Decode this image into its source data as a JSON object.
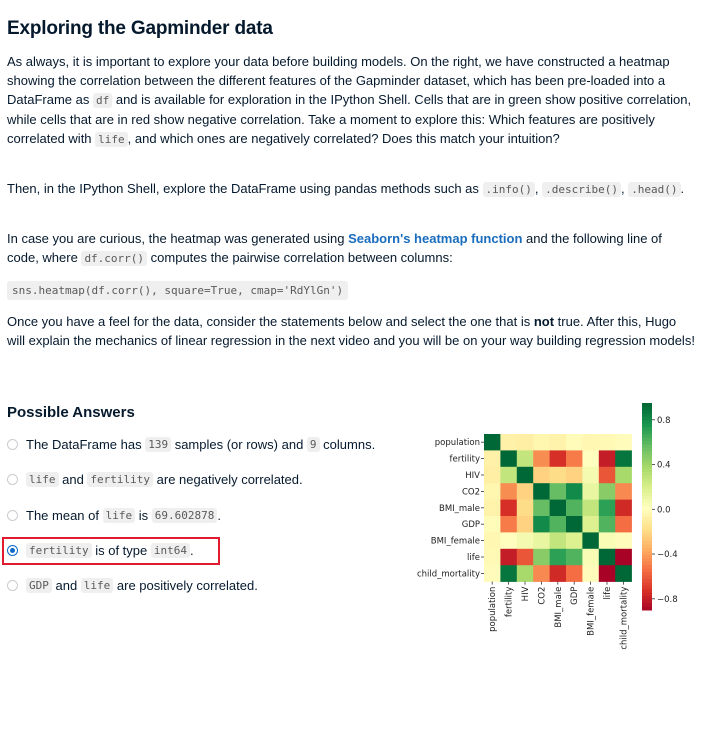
{
  "page": {
    "title": "Exploring the Gapminder data",
    "intro": {
      "t1": "As always, it is important to explore your data before building models. On the right, we have constructed a heatmap showing the correlation between the different features of the Gapminder dataset, which has been pre-loaded into a DataFrame as ",
      "c1": "df",
      "t2": " and is available for exploration in the IPython Shell. Cells that are in green show positive correlation, while cells that are in red show negative correlation. Take a moment to explore this: Which features are positively correlated with ",
      "c2": "life",
      "t3": ", and which ones are negatively correlated? Does this match your intuition?"
    },
    "explore": {
      "t1": "Then, in the IPython Shell, explore the DataFrame using pandas methods such as ",
      "c1": ".info()",
      "t2": ", ",
      "c2": ".describe()",
      "t3": ", ",
      "c3": ".head()",
      "t4": "."
    },
    "curious": {
      "t1": "In case you are curious, the heatmap was generated using ",
      "link": "Seaborn's heatmap function",
      "t2": " and the following line of code, where ",
      "c1": "df.corr()",
      "t3": " computes the pairwise correlation between columns:"
    },
    "code_line": "sns.heatmap(df.corr(), square=True, cmap='RdYlGn')",
    "outro": {
      "t1": "Once you have a feel for the data, consider the statements below and select the one that is ",
      "b1": "not",
      "t2": " true. After this, Hugo will explain the mechanics of linear regression in the next video and you will be on your way building regression models!"
    },
    "answers_title": "Possible Answers",
    "answers": [
      {
        "t1": "The DataFrame has ",
        "c1": "139",
        "t2": " samples (or rows) and ",
        "c2": "9",
        "t3": " columns."
      },
      {
        "c1": "life",
        "t1": " and ",
        "c2": "fertility",
        "t2": " are negatively correlated."
      },
      {
        "t1": "The mean of ",
        "c1": "life",
        "t2": " is ",
        "c2": "69.602878",
        "t3": "."
      },
      {
        "c1": "fertility",
        "t1": " is of type ",
        "c2": "int64",
        "t2": "."
      },
      {
        "c1": "GDP",
        "t1": " and ",
        "c2": "life",
        "t2": " are positively correlated."
      }
    ],
    "selected_answer": 3
  },
  "chart_data": {
    "type": "heatmap",
    "labels": [
      "population",
      "fertility",
      "HIV",
      "CO2",
      "BMI_male",
      "GDP",
      "BMI_female",
      "life",
      "child_mortality"
    ],
    "xtick_labels": [
      "population",
      "fertility",
      "HIV",
      "CO2",
      "BMI_male",
      "GDP",
      "BMI_female",
      "life",
      "child_mortality"
    ],
    "ytick_labels": [
      "population",
      "fertility",
      "HIV",
      "CO2",
      "BMI_male",
      "GDP",
      "BMI_female",
      "life",
      "child_mortality"
    ],
    "cmap": "RdYlGn",
    "vmin": -0.9,
    "vmax": 0.95,
    "colorbar_ticks": [
      0.8,
      0.4,
      0.0,
      -0.4,
      -0.8
    ],
    "colorbar_tick_labels": [
      "0.8",
      "0.4",
      "0.0",
      "−0.4",
      "−0.8"
    ],
    "values": [
      [
        1.0,
        -0.06,
        -0.07,
        -0.03,
        -0.05,
        0.0,
        -0.02,
        -0.01,
        0.01
      ],
      [
        -0.06,
        1.0,
        0.29,
        -0.44,
        -0.72,
        -0.49,
        0.02,
        -0.79,
        0.9
      ],
      [
        -0.07,
        0.29,
        1.0,
        -0.21,
        -0.17,
        -0.21,
        0.08,
        -0.6,
        0.39
      ],
      [
        -0.03,
        -0.44,
        -0.21,
        1.0,
        0.58,
        0.82,
        0.13,
        0.48,
        -0.45
      ],
      [
        -0.05,
        -0.72,
        -0.17,
        0.58,
        1.0,
        0.63,
        0.29,
        0.72,
        -0.74
      ],
      [
        0.0,
        -0.49,
        -0.21,
        0.82,
        0.63,
        1.0,
        0.19,
        0.63,
        -0.53
      ],
      [
        -0.02,
        0.02,
        0.08,
        0.13,
        0.29,
        0.19,
        1.0,
        0.06,
        0.01
      ],
      [
        -0.01,
        -0.79,
        -0.6,
        0.48,
        0.72,
        0.63,
        0.06,
        1.0,
        -0.89
      ],
      [
        0.01,
        0.9,
        0.39,
        -0.45,
        -0.74,
        -0.53,
        0.01,
        -0.89,
        1.0
      ]
    ]
  }
}
